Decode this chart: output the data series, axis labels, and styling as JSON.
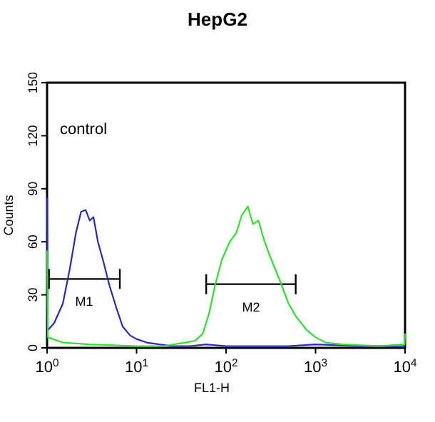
{
  "chart_data": {
    "type": "line",
    "title": "HepG2",
    "xlabel": "FL1-H",
    "ylabel": "Counts",
    "log": "x",
    "xlim": [
      1,
      10000
    ],
    "xticks": [
      {
        "value": 1,
        "label": "10$^{0}$"
      },
      {
        "value": 10,
        "label": "10$^{1}$"
      },
      {
        "value": 100,
        "label": "10$^{2}$"
      },
      {
        "value": 1000,
        "label": "10$^{3}$"
      },
      {
        "value": 10000,
        "label": "10$^{4}$"
      }
    ],
    "ylim": [
      0,
      150
    ],
    "yticks": [
      0,
      30,
      60,
      90,
      120,
      150
    ],
    "grid": false,
    "marker": "none",
    "line_style": "solid",
    "annotations": [
      "control",
      {
        "text": "M1",
        "x": 2.6,
        "y": 39
      },
      {
        "text": "M2",
        "x": 190,
        "y": 36
      }
    ],
    "series": [
      {
        "type": "line",
        "color": "#000000",
        "x": [
          1.05,
          6.5
        ],
        "values": [
          39,
          39
        ]
      },
      {
        "type": "line",
        "color": "#000000",
        "x": [
          60,
          600
        ],
        "values": [
          36,
          36
        ]
      },
      {
        "color": "#2a2ab8",
        "x": [
          1,
          1.02,
          1.2,
          1.5,
          1.8,
          2.1,
          2.4,
          2.7,
          3.0,
          3.3,
          3.7,
          4.2,
          5,
          6,
          7,
          8.5,
          10,
          13,
          18,
          25,
          40,
          60,
          100,
          200,
          500,
          1000,
          3000,
          10000
        ],
        "values": [
          85,
          10,
          14,
          25,
          45,
          65,
          77,
          78,
          72,
          74,
          60,
          50,
          35,
          22,
          12,
          7,
          5,
          3,
          2,
          1,
          1,
          2,
          1,
          1,
          1,
          2,
          1,
          1
        ]
      },
      {
        "color": "#33dd33",
        "x": [
          1,
          1.02,
          1.5,
          3,
          10,
          20,
          35,
          45,
          55,
          65,
          75,
          90,
          110,
          130,
          150,
          175,
          200,
          230,
          270,
          320,
          400,
          500,
          600,
          800,
          1000,
          1300,
          2000,
          5000,
          9900,
          10000
        ],
        "values": [
          55,
          6,
          3,
          2,
          1,
          1,
          3,
          4,
          8,
          20,
          35,
          50,
          60,
          65,
          75,
          80,
          70,
          72,
          60,
          50,
          38,
          25,
          18,
          10,
          6,
          3,
          2,
          1,
          2,
          8
        ]
      }
    ]
  }
}
